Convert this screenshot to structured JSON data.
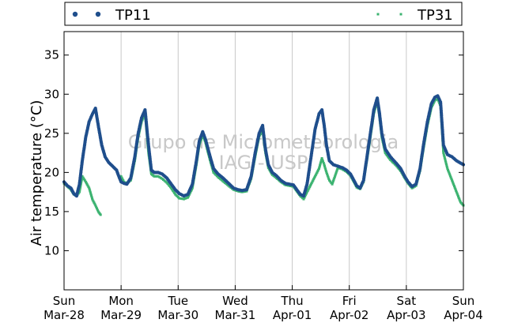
{
  "chart_data": {
    "type": "scatter",
    "title": "",
    "ylabel": "Air temperature (°C)",
    "xlabel": "",
    "watermark": [
      "Grupo de Micrometeorologia",
      "IAG - USP"
    ],
    "ylim": [
      5,
      38
    ],
    "xlim": [
      0,
      7
    ],
    "yticks": [
      10,
      15,
      20,
      25,
      30,
      35
    ],
    "xtick_labels": [
      [
        "Sun",
        "Mar-28"
      ],
      [
        "Mon",
        "Mar-29"
      ],
      [
        "Tue",
        "Mar-30"
      ],
      [
        "Wed",
        "Mar-31"
      ],
      [
        "Thu",
        "Apr-01"
      ],
      [
        "Fri",
        "Apr-02"
      ],
      [
        "Sat",
        "Apr-03"
      ],
      [
        "Sun",
        "Apr-04"
      ]
    ],
    "vertical_grid": true,
    "legend_position": "top",
    "series": [
      {
        "name": "TP11",
        "color": "#1f4e8c",
        "marker": "circle",
        "points": [
          [
            0.0,
            18.8
          ],
          [
            0.06,
            18.3
          ],
          [
            0.12,
            18.0
          ],
          [
            0.17,
            17.3
          ],
          [
            0.22,
            17.0
          ],
          [
            0.27,
            18.5
          ],
          [
            0.32,
            21.5
          ],
          [
            0.38,
            24.5
          ],
          [
            0.44,
            26.5
          ],
          [
            0.5,
            27.5
          ],
          [
            0.55,
            28.2
          ],
          [
            0.6,
            26.0
          ],
          [
            0.66,
            23.5
          ],
          [
            0.72,
            22.0
          ],
          [
            0.78,
            21.3
          ],
          [
            0.85,
            20.8
          ],
          [
            0.92,
            20.3
          ],
          [
            0.96,
            19.5
          ],
          [
            1.0,
            18.8
          ],
          [
            1.05,
            18.6
          ],
          [
            1.1,
            18.5
          ],
          [
            1.17,
            19.3
          ],
          [
            1.24,
            22.0
          ],
          [
            1.3,
            25.0
          ],
          [
            1.36,
            27.0
          ],
          [
            1.42,
            28.0
          ],
          [
            1.48,
            23.5
          ],
          [
            1.53,
            20.3
          ],
          [
            1.58,
            20.0
          ],
          [
            1.65,
            20.0
          ],
          [
            1.72,
            19.8
          ],
          [
            1.8,
            19.3
          ],
          [
            1.88,
            18.5
          ],
          [
            1.95,
            17.8
          ],
          [
            2.02,
            17.3
          ],
          [
            2.1,
            17.0
          ],
          [
            2.17,
            17.2
          ],
          [
            2.25,
            18.5
          ],
          [
            2.32,
            21.5
          ],
          [
            2.37,
            24.0
          ],
          [
            2.43,
            25.2
          ],
          [
            2.48,
            24.2
          ],
          [
            2.55,
            22.3
          ],
          [
            2.62,
            20.5
          ],
          [
            2.7,
            19.8
          ],
          [
            2.8,
            19.2
          ],
          [
            2.9,
            18.5
          ],
          [
            2.97,
            18.0
          ],
          [
            3.05,
            17.8
          ],
          [
            3.12,
            17.7
          ],
          [
            3.2,
            17.8
          ],
          [
            3.28,
            19.5
          ],
          [
            3.35,
            22.5
          ],
          [
            3.42,
            25.0
          ],
          [
            3.48,
            26.0
          ],
          [
            3.53,
            23.0
          ],
          [
            3.58,
            21.0
          ],
          [
            3.65,
            20.0
          ],
          [
            3.72,
            19.6
          ],
          [
            3.8,
            19.0
          ],
          [
            3.88,
            18.6
          ],
          [
            3.95,
            18.5
          ],
          [
            4.02,
            18.4
          ],
          [
            4.08,
            17.8
          ],
          [
            4.14,
            17.2
          ],
          [
            4.2,
            17.0
          ],
          [
            4.26,
            18.5
          ],
          [
            4.33,
            22.0
          ],
          [
            4.4,
            25.5
          ],
          [
            4.47,
            27.5
          ],
          [
            4.52,
            28.0
          ],
          [
            4.56,
            26.0
          ],
          [
            4.6,
            23.5
          ],
          [
            4.65,
            21.5
          ],
          [
            4.72,
            21.0
          ],
          [
            4.8,
            20.8
          ],
          [
            4.88,
            20.6
          ],
          [
            4.95,
            20.3
          ],
          [
            5.02,
            19.8
          ],
          [
            5.08,
            19.0
          ],
          [
            5.13,
            18.3
          ],
          [
            5.19,
            18.0
          ],
          [
            5.25,
            19.0
          ],
          [
            5.31,
            22.0
          ],
          [
            5.37,
            25.0
          ],
          [
            5.43,
            28.0
          ],
          [
            5.49,
            29.5
          ],
          [
            5.53,
            27.5
          ],
          [
            5.57,
            25.0
          ],
          [
            5.63,
            23.0
          ],
          [
            5.72,
            22.0
          ],
          [
            5.82,
            21.2
          ],
          [
            5.9,
            20.5
          ],
          [
            5.97,
            19.5
          ],
          [
            6.03,
            18.8
          ],
          [
            6.1,
            18.2
          ],
          [
            6.17,
            18.5
          ],
          [
            6.24,
            20.5
          ],
          [
            6.3,
            23.5
          ],
          [
            6.37,
            26.5
          ],
          [
            6.44,
            28.8
          ],
          [
            6.5,
            29.6
          ],
          [
            6.55,
            29.8
          ],
          [
            6.6,
            29.0
          ],
          [
            6.65,
            23.5
          ],
          [
            6.72,
            22.3
          ],
          [
            6.8,
            22.0
          ],
          [
            6.88,
            21.5
          ],
          [
            6.95,
            21.2
          ],
          [
            7.0,
            21.0
          ]
        ]
      },
      {
        "name": "TP31",
        "color": "#3cb371",
        "marker": "square",
        "points": [
          [
            0.0,
            18.6
          ],
          [
            0.06,
            18.2
          ],
          [
            0.12,
            17.8
          ],
          [
            0.17,
            17.2
          ],
          [
            0.22,
            17.0
          ],
          [
            0.27,
            17.5
          ],
          [
            0.32,
            19.5
          ],
          [
            0.38,
            18.8
          ],
          [
            0.44,
            18.0
          ],
          [
            0.5,
            16.5
          ],
          [
            0.55,
            15.8
          ],
          [
            0.6,
            15.0
          ],
          [
            0.64,
            14.6
          ],
          [
            1.0,
            19.5
          ],
          [
            1.05,
            18.8
          ],
          [
            1.1,
            18.6
          ],
          [
            1.17,
            19.0
          ],
          [
            1.24,
            21.5
          ],
          [
            1.3,
            24.5
          ],
          [
            1.36,
            26.5
          ],
          [
            1.42,
            27.5
          ],
          [
            1.48,
            22.5
          ],
          [
            1.53,
            19.8
          ],
          [
            1.58,
            19.5
          ],
          [
            1.65,
            19.5
          ],
          [
            1.72,
            19.2
          ],
          [
            1.8,
            18.7
          ],
          [
            1.88,
            18.0
          ],
          [
            1.95,
            17.2
          ],
          [
            2.02,
            16.7
          ],
          [
            2.1,
            16.6
          ],
          [
            2.17,
            16.8
          ],
          [
            2.25,
            18.0
          ],
          [
            2.32,
            21.0
          ],
          [
            2.37,
            23.5
          ],
          [
            2.43,
            24.8
          ],
          [
            2.48,
            23.8
          ],
          [
            2.55,
            21.8
          ],
          [
            2.62,
            20.0
          ],
          [
            2.7,
            19.4
          ],
          [
            2.8,
            18.8
          ],
          [
            2.9,
            18.2
          ],
          [
            2.97,
            17.8
          ],
          [
            3.05,
            17.6
          ],
          [
            3.12,
            17.5
          ],
          [
            3.2,
            17.6
          ],
          [
            3.28,
            19.2
          ],
          [
            3.35,
            22.0
          ],
          [
            3.42,
            24.6
          ],
          [
            3.48,
            25.4
          ],
          [
            3.53,
            22.5
          ],
          [
            3.58,
            20.6
          ],
          [
            3.65,
            19.7
          ],
          [
            3.72,
            19.3
          ],
          [
            3.8,
            18.8
          ],
          [
            3.88,
            18.4
          ],
          [
            3.95,
            18.3
          ],
          [
            4.02,
            18.2
          ],
          [
            4.08,
            17.6
          ],
          [
            4.14,
            17.0
          ],
          [
            4.2,
            16.6
          ],
          [
            4.26,
            17.5
          ],
          [
            4.33,
            18.5
          ],
          [
            4.4,
            19.5
          ],
          [
            4.47,
            20.5
          ],
          [
            4.52,
            21.8
          ],
          [
            4.56,
            21.0
          ],
          [
            4.6,
            20.0
          ],
          [
            4.65,
            19.0
          ],
          [
            4.7,
            18.5
          ],
          [
            4.8,
            20.6
          ],
          [
            4.88,
            20.4
          ],
          [
            4.95,
            20.1
          ],
          [
            5.02,
            19.6
          ],
          [
            5.08,
            18.8
          ],
          [
            5.13,
            18.1
          ],
          [
            5.19,
            17.9
          ],
          [
            5.25,
            18.8
          ],
          [
            5.31,
            21.6
          ],
          [
            5.37,
            24.5
          ],
          [
            5.43,
            27.5
          ],
          [
            5.49,
            29.2
          ],
          [
            5.53,
            27.0
          ],
          [
            5.57,
            24.5
          ],
          [
            5.63,
            22.5
          ],
          [
            5.72,
            21.6
          ],
          [
            5.82,
            20.9
          ],
          [
            5.9,
            20.2
          ],
          [
            5.97,
            19.3
          ],
          [
            6.03,
            18.6
          ],
          [
            6.1,
            18.0
          ],
          [
            6.17,
            18.3
          ],
          [
            6.24,
            20.2
          ],
          [
            6.3,
            23.0
          ],
          [
            6.37,
            26.0
          ],
          [
            6.44,
            28.3
          ],
          [
            6.5,
            29.2
          ],
          [
            6.55,
            29.4
          ],
          [
            6.6,
            28.5
          ],
          [
            6.65,
            22.5
          ],
          [
            6.72,
            20.5
          ],
          [
            6.8,
            19.0
          ],
          [
            6.88,
            17.5
          ],
          [
            6.95,
            16.2
          ],
          [
            7.0,
            15.8
          ]
        ]
      }
    ]
  }
}
